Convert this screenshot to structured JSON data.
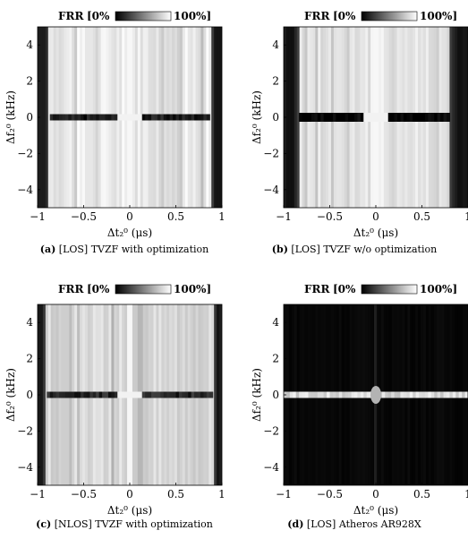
{
  "chart_data": [
    {
      "type": "heatmap",
      "panel": "a",
      "caption_tag": "(a)",
      "caption": "[LOS] TVZF with optimization",
      "colorbar": {
        "label": "FRR",
        "min_label": "[0%",
        "max_label": "100%]"
      },
      "xlabel": "Δt₂⁰ (μs)",
      "ylabel": "Δf₂⁰ (kHz)",
      "xlim": [
        -1,
        1
      ],
      "ylim": [
        -5,
        5
      ],
      "xticks": [
        "−1",
        "−0.5",
        "0",
        "0.5",
        "1"
      ],
      "yticks": [
        "4",
        "2",
        "0",
        "−2",
        "−4"
      ],
      "description_values": {
        "dark_band_left": [
          -1,
          -0.88
        ],
        "dark_band_right": [
          0.88,
          1
        ],
        "body_level": 0.92,
        "center_line_level": 0.1
      }
    },
    {
      "type": "heatmap",
      "panel": "b",
      "caption_tag": "(b)",
      "caption": "[LOS] TVZF w/o optimization",
      "colorbar": {
        "label": "FRR",
        "min_label": "[0%",
        "max_label": "100%]"
      },
      "xlabel": "Δt₂⁰ (μs)",
      "ylabel": "Δf₂⁰ (kHz)",
      "xlim": [
        -1,
        1
      ],
      "ylim": [
        -5,
        5
      ],
      "xticks": [
        "−1",
        "−0.5",
        "0",
        "0.5",
        "1"
      ],
      "yticks": [
        "4",
        "2",
        "0",
        "−2",
        "−4"
      ],
      "description_values": {
        "dark_band_left": [
          -1,
          -0.83
        ],
        "dark_band_right": [
          0.8,
          1
        ],
        "body_level": 0.9,
        "center_line_level": 0.0
      }
    },
    {
      "type": "heatmap",
      "panel": "c",
      "caption_tag": "(c)",
      "caption": "[NLOS] TVZF with optimization",
      "colorbar": {
        "label": "FRR",
        "min_label": "[0%",
        "max_label": "100%]"
      },
      "xlabel": "Δt₂⁰ (μs)",
      "ylabel": "Δf₂⁰ (kHz)",
      "xlim": [
        -1,
        1
      ],
      "ylim": [
        -5,
        5
      ],
      "xticks": [
        "−1",
        "−0.5",
        "0",
        "0.5",
        "1"
      ],
      "yticks": [
        "4",
        "2",
        "0",
        "−2",
        "−4"
      ],
      "description_values": {
        "dark_band_left": [
          -1,
          -0.9
        ],
        "dark_band_right": [
          0.9,
          1
        ],
        "body_level": 0.85,
        "center_line_level": 0.15
      }
    },
    {
      "type": "heatmap",
      "panel": "d",
      "caption_tag": "(d)",
      "caption": "[LOS] Atheros AR928X",
      "colorbar": {
        "label": "FRR",
        "min_label": "[0%",
        "max_label": "100%]"
      },
      "xlabel": "Δt₂⁰ (μs)",
      "ylabel": "Δf₂⁰ (kHz)",
      "xlim": [
        -1,
        1
      ],
      "ylim": [
        -5,
        5
      ],
      "xticks": [
        "−1",
        "−0.5",
        "0",
        "0.5",
        "1"
      ],
      "yticks": [
        "4",
        "2",
        "0",
        "−2",
        "−4"
      ],
      "description_values": {
        "dark_band_left": [
          -1,
          -1
        ],
        "dark_band_right": [
          1,
          1
        ],
        "body_level": 0.03,
        "center_line_level": 0.85
      }
    }
  ]
}
